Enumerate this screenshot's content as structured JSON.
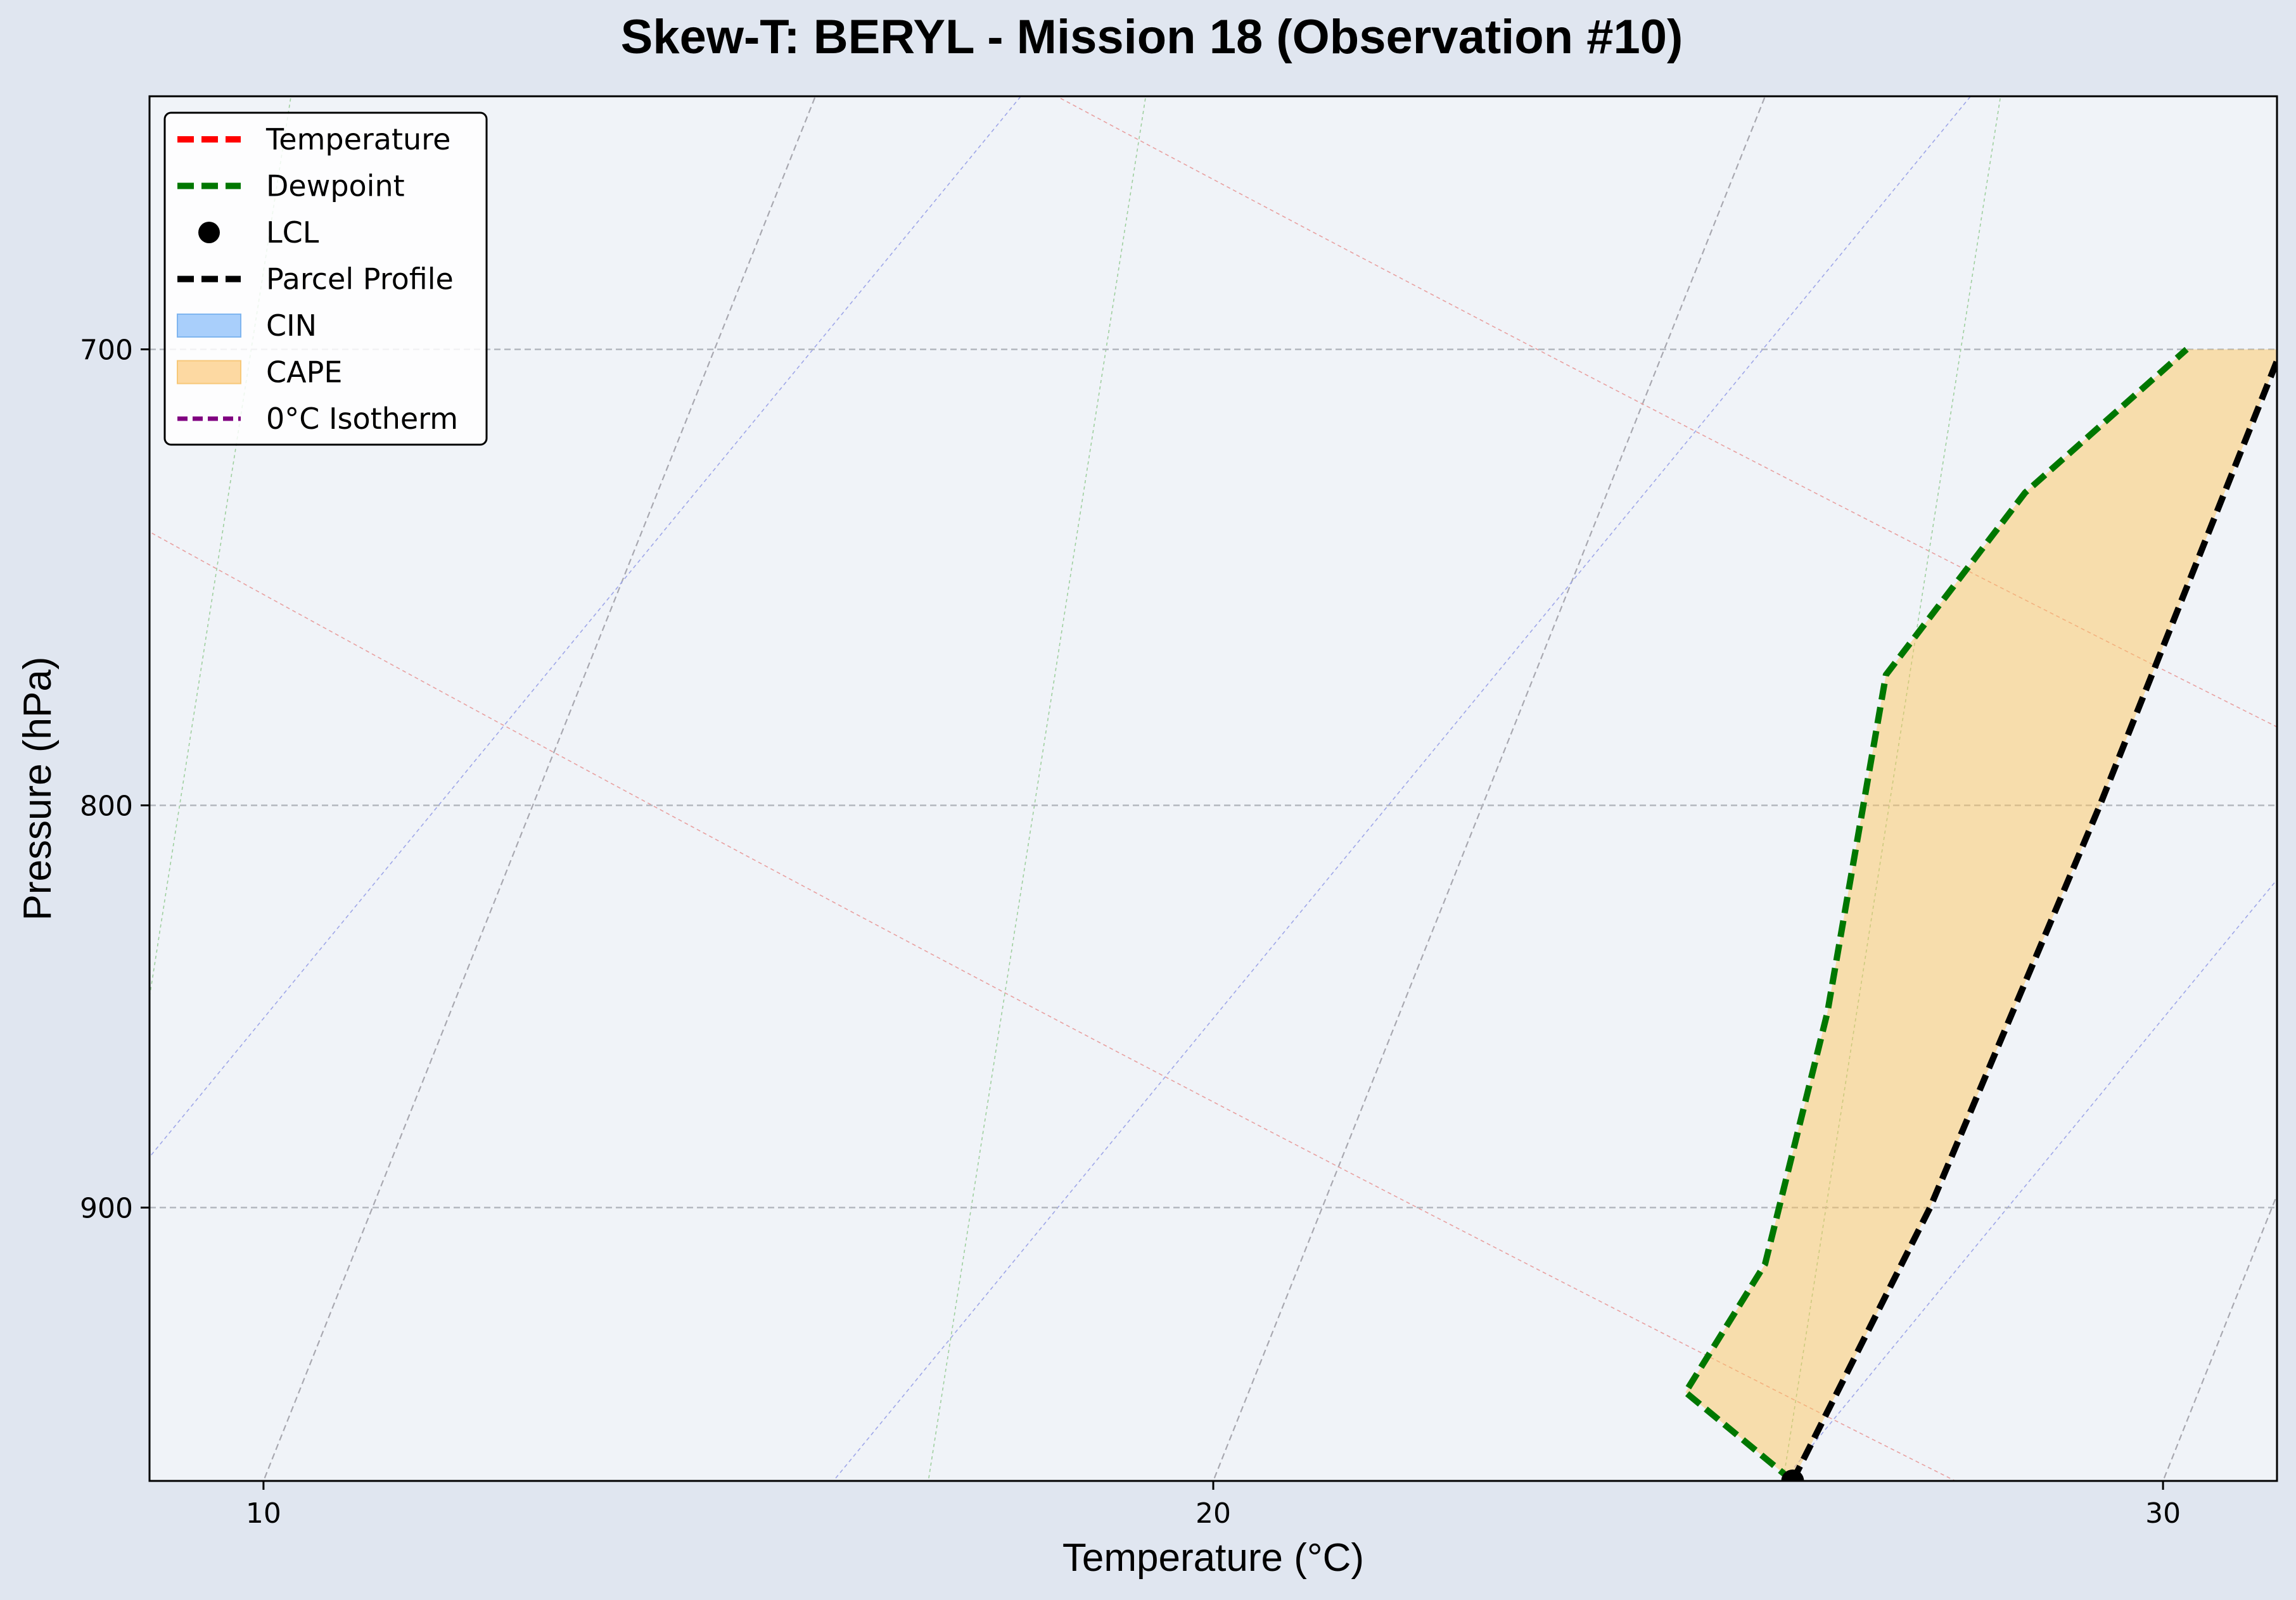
{
  "chart_data": {
    "type": "line",
    "title": "Skew-T: BERYL - Mission 18 (Observation #10)",
    "xlabel": "Temperature (°C)",
    "ylabel": "Pressure (hPa)",
    "xlim": [
      8.8,
      31.2
    ],
    "ylim": [
      975,
      650
    ],
    "y_scale": "log",
    "x_ticks": [
      10,
      20,
      30
    ],
    "y_ticks": [
      700,
      800,
      900
    ],
    "grid": "pressure gridlines dashed",
    "legend_position": "top-left",
    "skew_per_decade": 33,
    "series": [
      {
        "name": "Temperature",
        "color": "#ff0000",
        "style": "dashed",
        "points": []
      },
      {
        "name": "Dewpoint",
        "color": "#007700",
        "style": "dashed",
        "points": [
          {
            "p": 975,
            "t": 26.1
          },
          {
            "p": 950,
            "t": 24.6
          },
          {
            "p": 915,
            "t": 24.9
          },
          {
            "p": 850,
            "t": 24.5
          },
          {
            "p": 770,
            "t": 23.7
          },
          {
            "p": 730,
            "t": 24.4
          },
          {
            "p": 700,
            "t": 25.5
          }
        ]
      },
      {
        "name": "Parcel Profile",
        "color": "#000000",
        "style": "dashed",
        "points": [
          {
            "p": 975,
            "t": 26.1
          },
          {
            "p": 900,
            "t": 26.4
          },
          {
            "p": 800,
            "t": 26.5
          },
          {
            "p": 700,
            "t": 26.5
          }
        ]
      },
      {
        "name": "0°C Isotherm",
        "color": "#800080",
        "style": "dashed",
        "points": [
          {
            "p": 650,
            "t": 0
          },
          {
            "p": 975,
            "t": 0
          }
        ]
      }
    ],
    "lcl": {
      "name": "LCL",
      "p": 975,
      "t": 26.1
    },
    "cape": {
      "name": "CAPE",
      "color": "#ffc45a"
    },
    "cin": {
      "name": "CIN",
      "color": "#5aa6ff"
    },
    "legend": [
      {
        "label": "Temperature",
        "kind": "line",
        "color": "#ff0000"
      },
      {
        "label": "Dewpoint",
        "kind": "line",
        "color": "#007700"
      },
      {
        "label": "LCL",
        "kind": "dot",
        "color": "#000000"
      },
      {
        "label": "Parcel Profile",
        "kind": "line",
        "color": "#000000"
      },
      {
        "label": "CIN",
        "kind": "patch",
        "color": "#a9cffb",
        "edge": "#7fb5ef"
      },
      {
        "label": "CAPE",
        "kind": "patch",
        "color": "#fdd9a2",
        "edge": "#f7c878"
      },
      {
        "label": "0°C Isotherm",
        "kind": "line-thin",
        "color": "#800080"
      }
    ]
  }
}
